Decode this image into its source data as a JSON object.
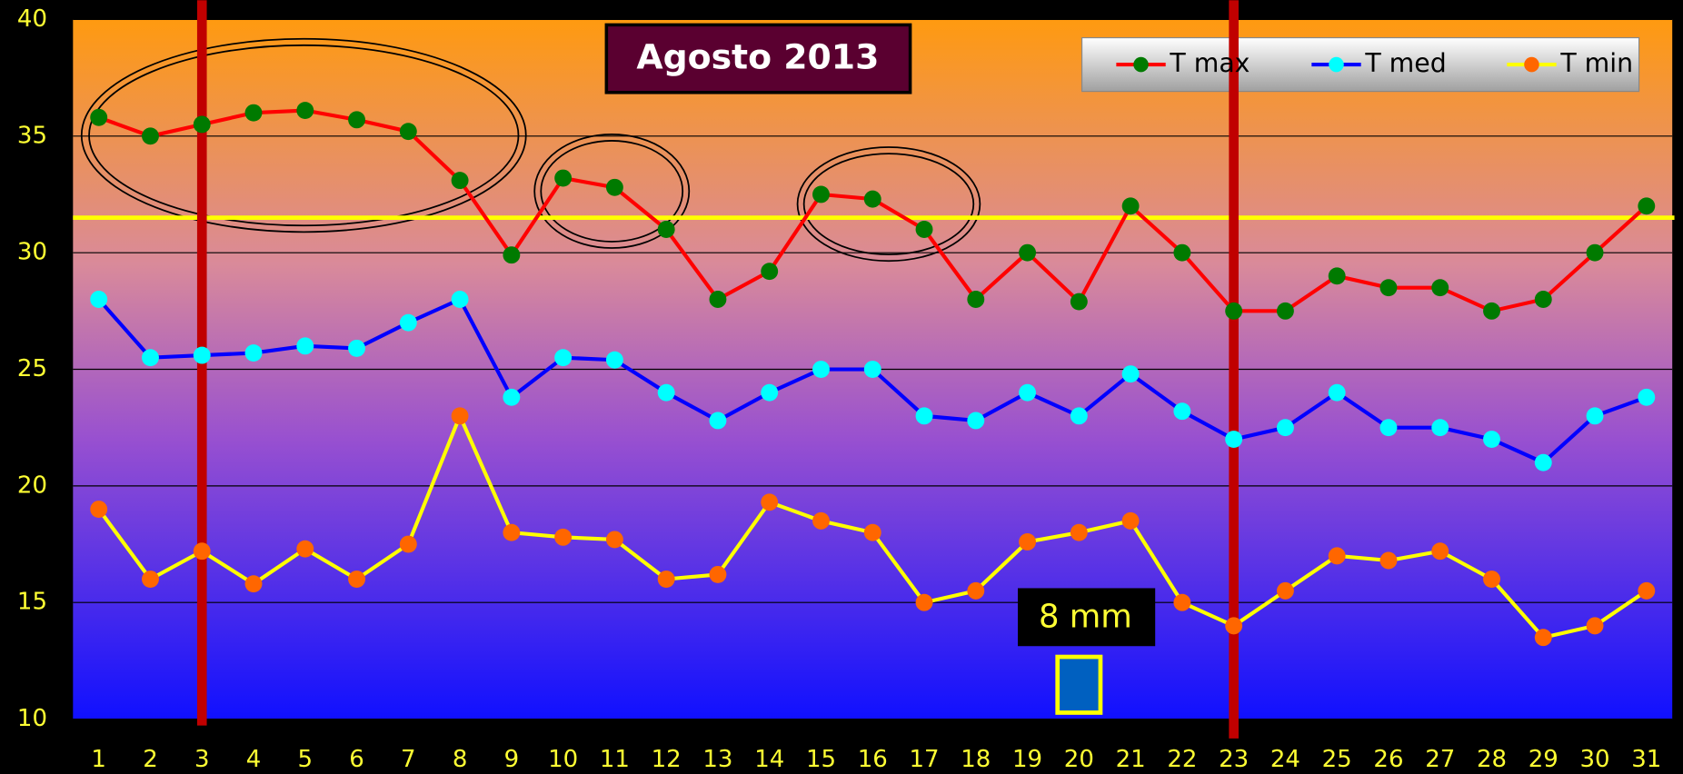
{
  "chart_data": {
    "type": "line",
    "title": "Agosto  2013",
    "categories": [
      "1",
      "2",
      "3",
      "4",
      "5",
      "6",
      "7",
      "8",
      "9",
      "10",
      "11",
      "12",
      "13",
      "14",
      "15",
      "16",
      "17",
      "18",
      "19",
      "20",
      "21",
      "22",
      "23",
      "24",
      "25",
      "26",
      "27",
      "28",
      "29",
      "30",
      "31"
    ],
    "series": [
      {
        "name": "T max",
        "color": "#ff0000",
        "marker_color": "#007a00",
        "values": [
          35.8,
          35,
          35.5,
          36,
          36.1,
          35.7,
          35.2,
          33.1,
          29.9,
          33.2,
          32.8,
          31,
          28,
          29.2,
          32.5,
          32.3,
          31,
          28,
          30,
          27.9,
          32,
          30,
          27.5,
          27.5,
          29,
          28.5,
          28.5,
          27.5,
          28,
          30,
          32
        ]
      },
      {
        "name": "T med",
        "color": "#0000ff",
        "marker_color": "#00ffff",
        "values": [
          28,
          25.5,
          25.6,
          25.7,
          26,
          25.9,
          27,
          28,
          23.8,
          25.5,
          25.4,
          24,
          22.8,
          24,
          25,
          25,
          23,
          22.8,
          24,
          23,
          24.8,
          23.2,
          22,
          22.5,
          24,
          22.5,
          22.5,
          22,
          21,
          23,
          23.8
        ]
      },
      {
        "name": "T min",
        "color": "#ffff00",
        "marker_color": "#ff6600",
        "values": [
          19,
          16,
          17.2,
          15.8,
          17.3,
          16,
          17.5,
          23,
          18,
          17.8,
          17.7,
          16,
          16.2,
          19.3,
          18.5,
          18,
          15,
          15.5,
          17.6,
          18,
          18.5,
          15,
          14,
          15.5,
          17,
          16.8,
          17.2,
          16,
          13.5,
          14,
          15.5
        ]
      }
    ],
    "ylim": [
      10,
      40
    ],
    "yticks": [
      10,
      15,
      20,
      25,
      30,
      35,
      40
    ],
    "grid": true,
    "reference_line": 31.5,
    "markers": [
      "3",
      "23"
    ],
    "annotation": "8 mm",
    "annotation_category": "20"
  }
}
